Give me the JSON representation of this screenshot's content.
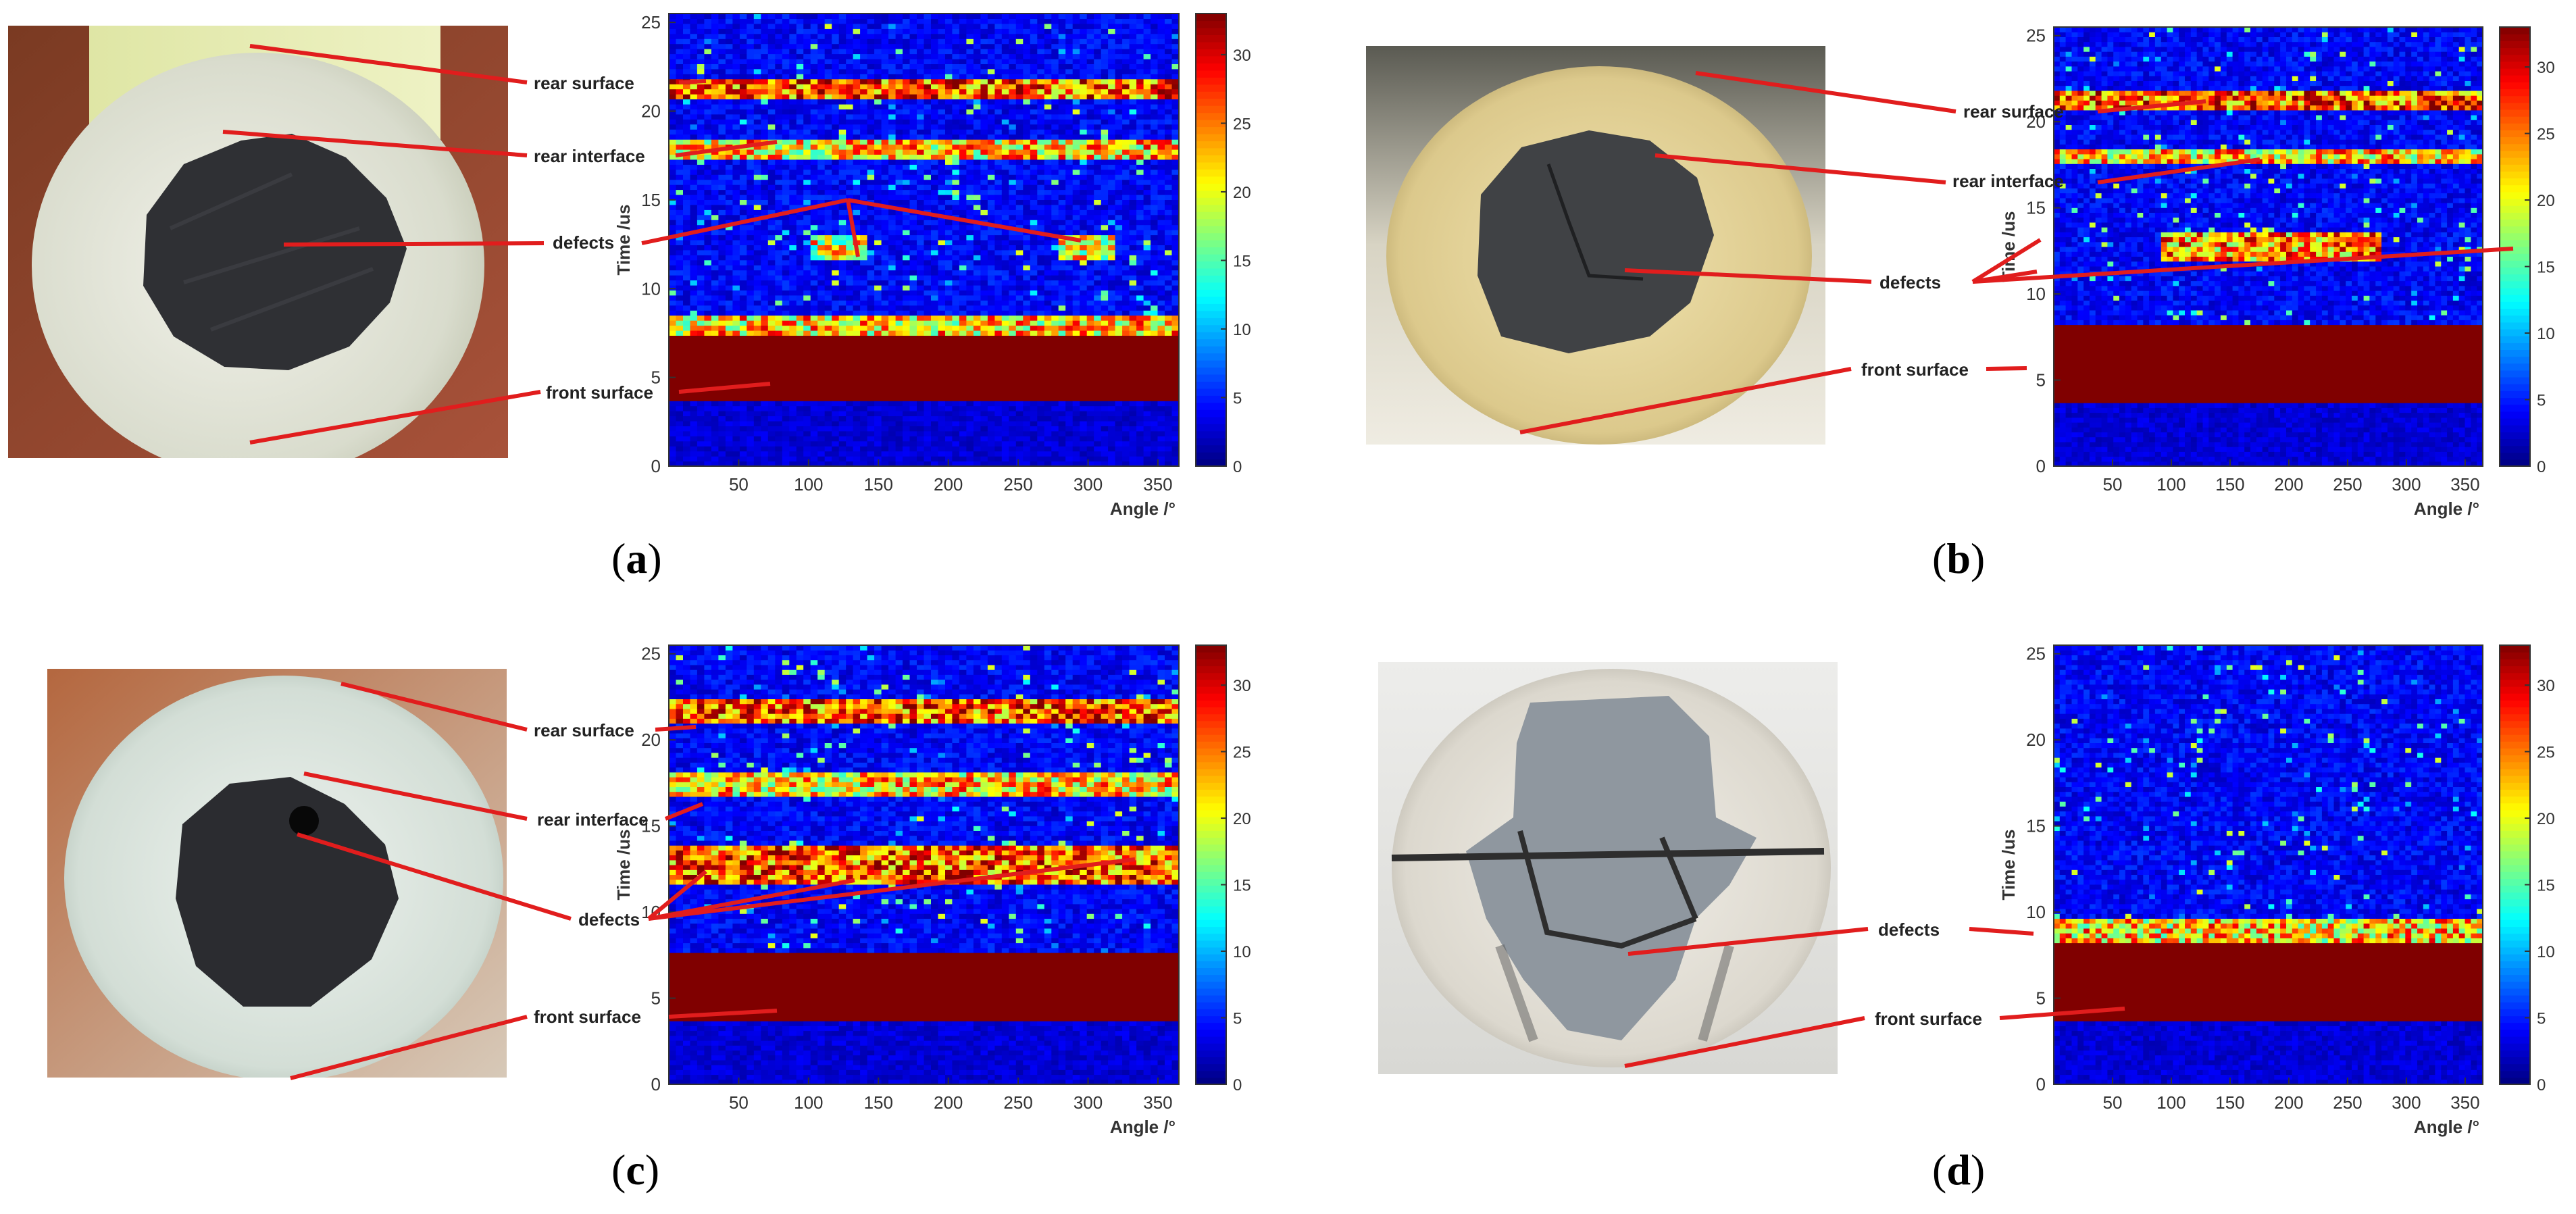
{
  "figure": {
    "panels": [
      {
        "id": "a",
        "label_open": "(",
        "label_letter": "a",
        "label_close": ")",
        "photo": "cross-section-round-rod-white-shell-dark-core",
        "annotations": [
          "rear surface",
          "rear interface",
          "defects",
          "front surface"
        ]
      },
      {
        "id": "b",
        "label_open": "(",
        "label_letter": "b",
        "label_close": ")",
        "photo": "cross-section-yellow-shell-dark-core-cracked",
        "annotations": [
          "rear surface",
          "rear interface",
          "defects",
          "front surface"
        ]
      },
      {
        "id": "c",
        "label_open": "(",
        "label_letter": "c",
        "label_close": ")",
        "photo": "cross-section-grey-shell-dark-core-hole",
        "annotations": [
          "rear surface",
          "rear interface",
          "defects",
          "front surface"
        ]
      },
      {
        "id": "d",
        "label_open": "(",
        "label_letter": "d",
        "label_close": ")",
        "photo": "cross-section-white-shell-cracked-grey-core",
        "annotations": [
          "defects",
          "front surface"
        ]
      }
    ]
  },
  "colors": {
    "annotation_line": "#e11d1d",
    "colormap": "jet"
  },
  "chart_data": [
    {
      "type": "heatmap",
      "panel": "a",
      "title": "",
      "xlabel": "Angle /°",
      "ylabel": "Time /us",
      "xlim": [
        0,
        365
      ],
      "ylim": [
        0,
        25.5
      ],
      "xticks": [
        50,
        100,
        150,
        200,
        250,
        300,
        350
      ],
      "yticks": [
        0,
        5,
        10,
        15,
        20,
        25
      ],
      "colorbar_range": [
        0,
        33
      ],
      "colorbar_ticks": [
        0,
        5,
        10,
        15,
        20,
        25,
        30
      ],
      "bands": [
        {
          "feature": "front surface",
          "time_start": 3.7,
          "time_end": 7.5,
          "intensity": 33
        },
        {
          "feature": "front surface edge",
          "time_start": 7.5,
          "time_end": 8.5,
          "intensity": 22
        },
        {
          "feature": "defects",
          "time_start": 11.5,
          "time_end": 13.0,
          "intensity": 20,
          "angle_range": [
            100,
            140
          ]
        },
        {
          "feature": "defects",
          "time_start": 11.5,
          "time_end": 13.0,
          "intensity": 20,
          "angle_range": [
            280,
            320
          ]
        },
        {
          "feature": "rear interface",
          "time_start": 17.2,
          "time_end": 18.3,
          "intensity": 22
        },
        {
          "feature": "rear surface",
          "time_start": 20.6,
          "time_end": 21.8,
          "intensity": 26
        }
      ]
    },
    {
      "type": "heatmap",
      "panel": "b",
      "title": "",
      "xlabel": "Angle /°",
      "ylabel": "Time /us",
      "xlim": [
        0,
        365
      ],
      "ylim": [
        0,
        25.5
      ],
      "xticks": [
        50,
        100,
        150,
        200,
        250,
        300,
        350
      ],
      "yticks": [
        0,
        5,
        10,
        15,
        20,
        25
      ],
      "colorbar_range": [
        0,
        33
      ],
      "colorbar_ticks": [
        0,
        5,
        10,
        15,
        20,
        25,
        30
      ],
      "bands": [
        {
          "feature": "front surface",
          "time_start": 3.7,
          "time_end": 8.3,
          "intensity": 33
        },
        {
          "feature": "defects",
          "time_start": 12.0,
          "time_end": 13.5,
          "intensity": 24,
          "angle_range": [
            90,
            280
          ]
        },
        {
          "feature": "rear interface",
          "time_start": 17.5,
          "time_end": 18.5,
          "intensity": 22
        },
        {
          "feature": "rear surface",
          "time_start": 20.8,
          "time_end": 21.8,
          "intensity": 26
        }
      ]
    },
    {
      "type": "heatmap",
      "panel": "c",
      "title": "",
      "xlabel": "Angle /°",
      "ylabel": "Time /us",
      "xlim": [
        0,
        365
      ],
      "ylim": [
        0,
        25.5
      ],
      "xticks": [
        50,
        100,
        150,
        200,
        250,
        300,
        350
      ],
      "yticks": [
        0,
        5,
        10,
        15,
        20,
        25
      ],
      "colorbar_range": [
        0,
        33
      ],
      "colorbar_ticks": [
        0,
        5,
        10,
        15,
        20,
        25,
        30
      ],
      "bands": [
        {
          "feature": "front surface",
          "time_start": 3.7,
          "time_end": 7.7,
          "intensity": 33
        },
        {
          "feature": "defects",
          "time_start": 11.5,
          "time_end": 14.0,
          "intensity": 26,
          "angle_range": [
            0,
            365
          ]
        },
        {
          "feature": "rear interface",
          "time_start": 16.8,
          "time_end": 18.0,
          "intensity": 22
        },
        {
          "feature": "rear surface",
          "time_start": 21.0,
          "time_end": 22.3,
          "intensity": 26
        }
      ]
    },
    {
      "type": "heatmap",
      "panel": "d",
      "title": "",
      "xlabel": "Angle /°",
      "ylabel": "Time /us",
      "xlim": [
        0,
        365
      ],
      "ylim": [
        0,
        25.5
      ],
      "xticks": [
        50,
        100,
        150,
        200,
        250,
        300,
        350
      ],
      "yticks": [
        0,
        5,
        10,
        15,
        20,
        25
      ],
      "colorbar_range": [
        0,
        33
      ],
      "colorbar_ticks": [
        0,
        5,
        10,
        15,
        20,
        25,
        30
      ],
      "bands": [
        {
          "feature": "front surface",
          "time_start": 3.7,
          "time_end": 8.3,
          "intensity": 33
        },
        {
          "feature": "defects",
          "time_start": 8.3,
          "time_end": 9.5,
          "intensity": 22
        }
      ]
    }
  ]
}
